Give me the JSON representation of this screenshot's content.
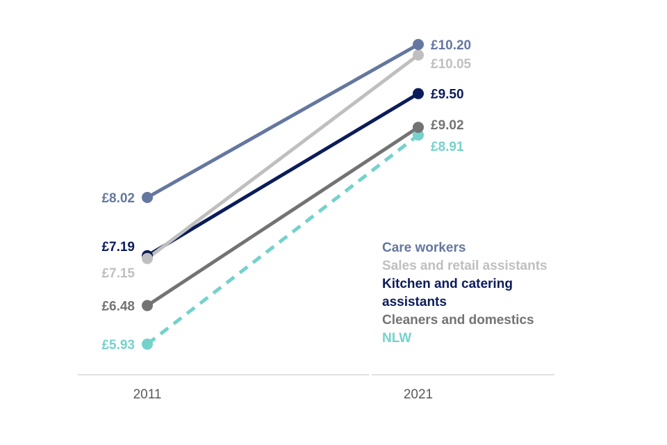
{
  "chart_data": {
    "type": "line",
    "title": "",
    "xlabel": "",
    "ylabel": "",
    "x": [
      "2011",
      "2021"
    ],
    "ylim": [
      5.5,
      10.5
    ],
    "series": [
      {
        "name": "Care workers",
        "values": [
          8.02,
          10.2
        ],
        "labels": [
          "£8.02",
          "£10.20"
        ],
        "color": "#6477a0",
        "dash": false
      },
      {
        "name": "Sales and retail assistants",
        "values": [
          7.15,
          10.05
        ],
        "labels": [
          "£7.15",
          "£10.05"
        ],
        "color": "#bfbfbf",
        "dash": false
      },
      {
        "name": "Kitchen and catering assistants",
        "legend_lines": [
          "Kitchen and catering",
          "assistants"
        ],
        "values": [
          7.19,
          9.5
        ],
        "labels": [
          "£7.19",
          "£9.50"
        ],
        "color": "#0b1c5a",
        "dash": false
      },
      {
        "name": "Cleaners and domestics",
        "values": [
          6.48,
          9.02
        ],
        "labels": [
          "£6.48",
          "£9.02"
        ],
        "color": "#737373",
        "dash": false
      },
      {
        "name": "NLW",
        "values": [
          5.93,
          8.91
        ],
        "labels": [
          "£5.93",
          "£8.91"
        ],
        "color": "#74d2cb",
        "dash": true
      }
    ],
    "legend_position": "right"
  }
}
